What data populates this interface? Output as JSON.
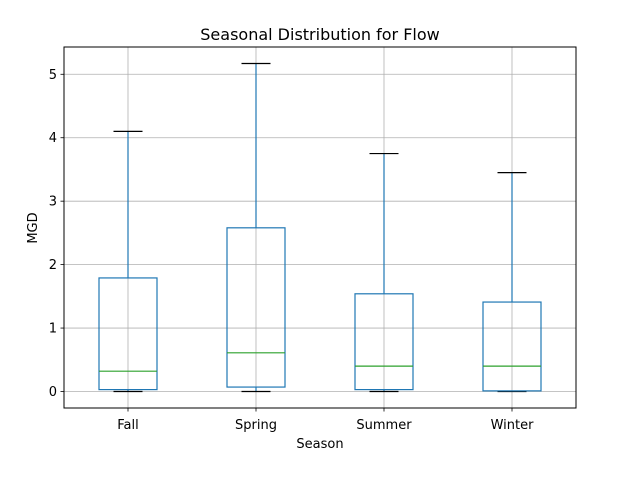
{
  "chart_data": {
    "type": "box",
    "title": "Seasonal Distribution for Flow",
    "xlabel": "Season",
    "ylabel": "MGD",
    "categories": [
      "Fall",
      "Spring",
      "Summer",
      "Winter"
    ],
    "boxes": [
      {
        "category": "Fall",
        "whisker_low": 0.0,
        "q1": 0.03,
        "median": 0.32,
        "q3": 1.79,
        "whisker_high": 4.1
      },
      {
        "category": "Spring",
        "whisker_low": 0.0,
        "q1": 0.07,
        "median": 0.61,
        "q3": 2.58,
        "whisker_high": 5.17
      },
      {
        "category": "Summer",
        "whisker_low": 0.0,
        "q1": 0.03,
        "median": 0.4,
        "q3": 1.54,
        "whisker_high": 3.75
      },
      {
        "category": "Winter",
        "whisker_low": 0.0,
        "q1": 0.01,
        "median": 0.4,
        "q3": 1.41,
        "whisker_high": 3.45
      }
    ],
    "ylim": [
      -0.26,
      5.43
    ],
    "yticks": [
      0,
      1,
      2,
      3,
      4,
      5
    ],
    "grid": true,
    "colors": {
      "box": "#1f77b4",
      "median": "#2ca02c",
      "cap": "#000000",
      "grid": "#b0b0b0"
    }
  }
}
